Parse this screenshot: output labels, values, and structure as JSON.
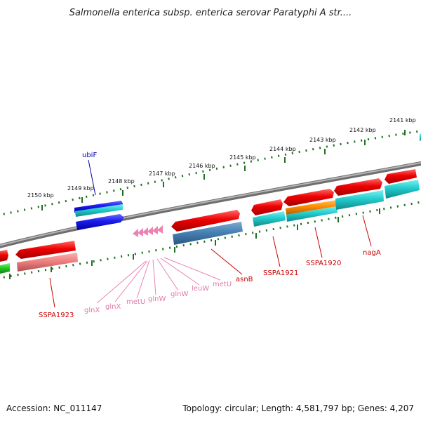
{
  "title": "Salmonella enterica subsp. enterica serovar Paratyphi A str....",
  "footer": {
    "accession": "Accession: NC_011147",
    "summary": "Topology: circular; Length: 4,581,797 bp; Genes: 4,207"
  },
  "scale_labels": [
    "2150 kbp",
    "2149 kbp",
    "2148 kbp",
    "2147 kbp",
    "2146 kbp",
    "2145 kbp",
    "2144 kbp",
    "2143 kbp",
    "2142 kbp",
    "2141 kbp"
  ],
  "gene_labels": {
    "ubiF": "ubiF",
    "SSPA1923": "SSPA1923",
    "glnX_1": "glnX",
    "glnX_2": "glnX",
    "metU_1": "metU",
    "glnW_1": "glnW",
    "glnW_2": "glnW",
    "leuW": "leuW",
    "metU_2": "metU",
    "asnB": "asnB",
    "SSPA1921": "SSPA1921",
    "SSPA1920": "SSPA1920",
    "nagA": "nagA"
  },
  "colors": {
    "backbone": "#888888",
    "red": "#ee0000",
    "blue": "#1a1aee",
    "cyan": "#22cccc",
    "steelblue": "#4682b4",
    "salmon": "#f08080",
    "orange": "#ff8c00",
    "green": "#22cc22",
    "pink": "#ee82b4",
    "tick_green": "#207020",
    "label_red": "#cc0000",
    "label_blue": "#0000aa",
    "label_pink": "#e07aa8"
  }
}
